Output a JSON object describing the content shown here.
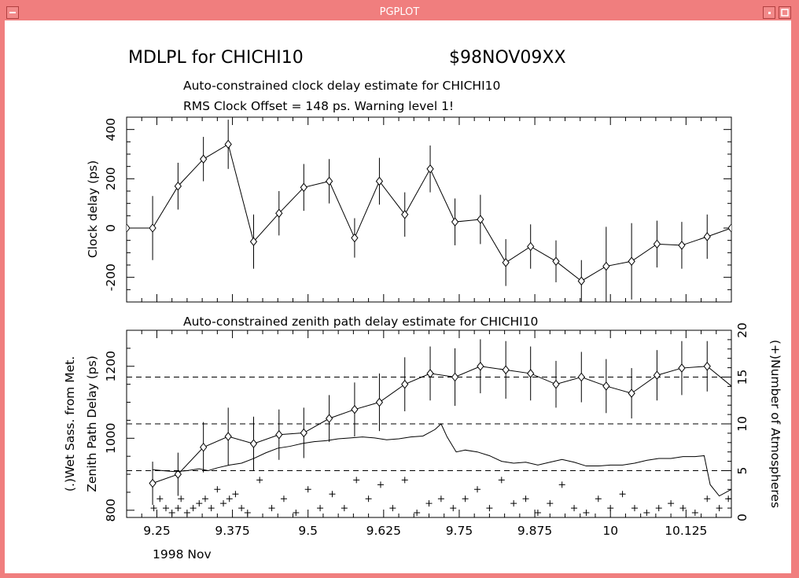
{
  "window": {
    "title": "PGPLOT"
  },
  "chart_data": [
    {
      "type": "line",
      "title": "MDLPL for CHICHI10",
      "title_right": "$98NOV09XX",
      "subtitle": "Auto-constrained clock delay estimate for CHICHI10",
      "subtitle2": "RMS Clock Offset = 148 ps. Warning level 1!",
      "xlabel": "",
      "ylabel": "Clock delay (ps)",
      "xlim": [
        9.2,
        10.2
      ],
      "ylim": [
        -300,
        450
      ],
      "yticks": [
        -200,
        0,
        200,
        400
      ],
      "grid": false,
      "series": [
        {
          "x": [
            9.2,
            9.243,
            9.285,
            9.327,
            9.368,
            9.41,
            9.452,
            9.493,
            9.535,
            9.577,
            9.618,
            9.66,
            9.702,
            9.743,
            9.785,
            9.827,
            9.868,
            9.91,
            9.952,
            9.993,
            10.035,
            10.077,
            10.118,
            10.16,
            10.2
          ],
          "y": [
            0,
            0,
            170,
            280,
            340,
            -55,
            60,
            165,
            190,
            -40,
            190,
            55,
            240,
            25,
            35,
            -140,
            -75,
            -135,
            -215,
            -155,
            -135,
            -65,
            -70,
            -35,
            0
          ],
          "err": [
            0,
            130,
            95,
            90,
            100,
            110,
            90,
            95,
            90,
            80,
            95,
            90,
            95,
            95,
            100,
            95,
            90,
            85,
            85,
            160,
            155,
            95,
            95,
            90,
            0
          ]
        }
      ]
    },
    {
      "type": "line",
      "subtitle": "Auto-constrained zenith path delay estimate for CHICHI10",
      "xlabel": "1998 Nov",
      "ylabel": "Zenith Path Delay (ps)",
      "ylabel_outer": "(.)Wet Sass. from Met.",
      "ylabel_right": "(+)Number of Atmospheres",
      "xlim": [
        9.2,
        10.2
      ],
      "xticks": [
        "9.25",
        "9.375",
        "9.5",
        "9.625",
        "9.75",
        "9.875",
        "10",
        "10.125"
      ],
      "xtick_values": [
        9.25,
        9.375,
        9.5,
        9.625,
        9.75,
        9.875,
        10,
        10.125
      ],
      "ylim": [
        780,
        1300
      ],
      "yticks": [
        800,
        1000,
        1200
      ],
      "ylim_right": [
        0,
        20
      ],
      "yticks_right": [
        0,
        5,
        10,
        15,
        20
      ],
      "dashed_levels_right": [
        5,
        10,
        15
      ],
      "series": [
        {
          "name": "Zenith path delay",
          "x": [
            9.243,
            9.285,
            9.327,
            9.368,
            9.41,
            9.452,
            9.493,
            9.535,
            9.577,
            9.618,
            9.66,
            9.702,
            9.743,
            9.785,
            9.827,
            9.868,
            9.91,
            9.952,
            9.993,
            10.035,
            10.077,
            10.118,
            10.16,
            10.2
          ],
          "y": [
            875,
            900,
            975,
            1005,
            985,
            1010,
            1015,
            1055,
            1080,
            1100,
            1150,
            1180,
            1170,
            1200,
            1190,
            1180,
            1150,
            1170,
            1145,
            1125,
            1175,
            1195,
            1200,
            1145
          ],
          "err": [
            60,
            60,
            70,
            80,
            75,
            70,
            70,
            65,
            75,
            80,
            75,
            75,
            80,
            75,
            80,
            75,
            65,
            70,
            75,
            70,
            70,
            75,
            70,
            0
          ]
        },
        {
          "name": "Wet Sass. from Met.",
          "x": [
            9.243,
            9.26,
            9.28,
            9.3,
            9.32,
            9.335,
            9.35,
            9.37,
            9.39,
            9.41,
            9.43,
            9.45,
            9.47,
            9.49,
            9.51,
            9.53,
            9.55,
            9.57,
            9.59,
            9.61,
            9.63,
            9.65,
            9.67,
            9.69,
            9.71,
            9.72,
            9.73,
            9.745,
            9.76,
            9.78,
            9.8,
            9.82,
            9.84,
            9.86,
            9.88,
            9.9,
            9.92,
            9.94,
            9.96,
            9.98,
            10.0,
            10.02,
            10.04,
            10.06,
            10.08,
            10.1,
            10.12,
            10.14,
            10.155,
            10.165,
            10.18,
            10.2
          ],
          "y": [
            5.1,
            5.0,
            4.9,
            5.0,
            5.2,
            5.0,
            5.3,
            5.6,
            5.8,
            6.3,
            6.9,
            7.4,
            7.6,
            7.9,
            8.1,
            8.2,
            8.4,
            8.5,
            8.6,
            8.5,
            8.3,
            8.4,
            8.6,
            8.7,
            9.4,
            10.0,
            8.6,
            7.0,
            7.2,
            7.0,
            6.6,
            6.0,
            5.8,
            5.9,
            5.6,
            5.9,
            6.2,
            5.9,
            5.5,
            5.5,
            5.6,
            5.6,
            5.8,
            6.1,
            6.3,
            6.3,
            6.5,
            6.5,
            6.6,
            3.5,
            2.3,
            3.0
          ]
        },
        {
          "name": "Number of Atmospheres",
          "x": [
            9.245,
            9.255,
            9.265,
            9.275,
            9.285,
            9.29,
            9.3,
            9.31,
            9.32,
            9.33,
            9.34,
            9.35,
            9.36,
            9.37,
            9.38,
            9.39,
            9.4,
            9.42,
            9.44,
            9.46,
            9.48,
            9.5,
            9.52,
            9.54,
            9.56,
            9.58,
            9.6,
            9.62,
            9.64,
            9.66,
            9.68,
            9.7,
            9.72,
            9.74,
            9.76,
            9.78,
            9.8,
            9.82,
            9.84,
            9.86,
            9.88,
            9.9,
            9.92,
            9.94,
            9.96,
            9.98,
            10.0,
            10.02,
            10.04,
            10.06,
            10.08,
            10.1,
            10.12,
            10.14,
            10.16,
            10.18,
            10.195
          ],
          "y": [
            1,
            2,
            1,
            0.5,
            1,
            2,
            0.5,
            1,
            1.5,
            2,
            1,
            3,
            1.5,
            2,
            2.5,
            1,
            0.5,
            4,
            1,
            2,
            0.5,
            3,
            1,
            2.5,
            1,
            4,
            2,
            3.5,
            1,
            4,
            0.5,
            1.5,
            2,
            1,
            2,
            3,
            1,
            4,
            1.5,
            2,
            0.5,
            1.5,
            3.5,
            1,
            0.5,
            2,
            1,
            2.5,
            1,
            0.5,
            1,
            1.5,
            1,
            0.5,
            2,
            1,
            2
          ]
        }
      ]
    }
  ]
}
